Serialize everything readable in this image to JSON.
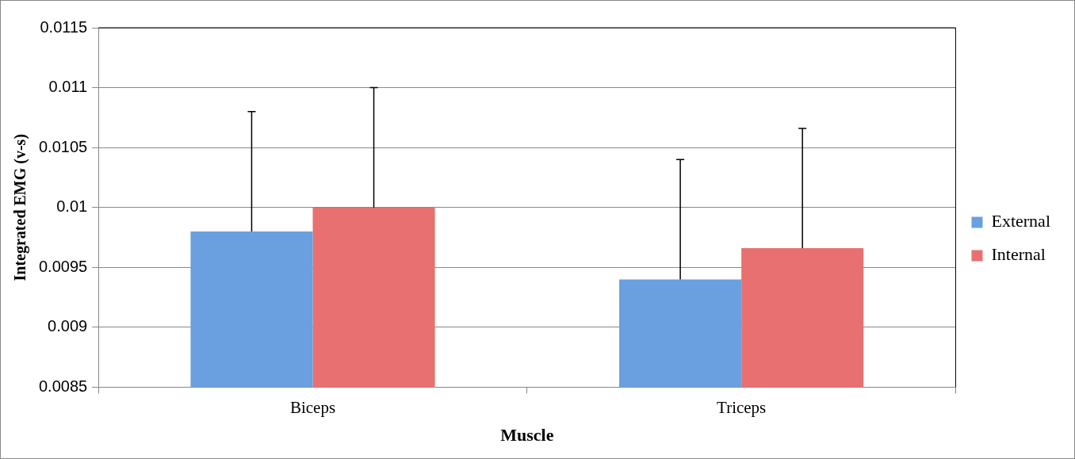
{
  "chart_data": {
    "type": "bar",
    "xlabel": "Muscle",
    "ylabel": "Integrated EMG (v-s)",
    "categories": [
      "Biceps",
      "Triceps"
    ],
    "series": [
      {
        "name": "External",
        "color": "#6a9fe0",
        "values": [
          0.0098,
          0.0094
        ],
        "errors": [
          [
            0.0098,
            0.0108
          ],
          [
            0.0094,
            0.0104
          ]
        ]
      },
      {
        "name": "Internal",
        "color": "#e87070",
        "values": [
          0.01,
          0.00966
        ],
        "errors": [
          [
            0.01,
            0.011
          ],
          [
            0.00966,
            0.01066
          ]
        ]
      }
    ],
    "ylim": [
      0.0085,
      0.0115
    ],
    "yticks": [
      0.0085,
      0.009,
      0.0095,
      0.01,
      0.0105,
      0.011,
      0.0115
    ],
    "grid": "y",
    "legend": "right"
  }
}
